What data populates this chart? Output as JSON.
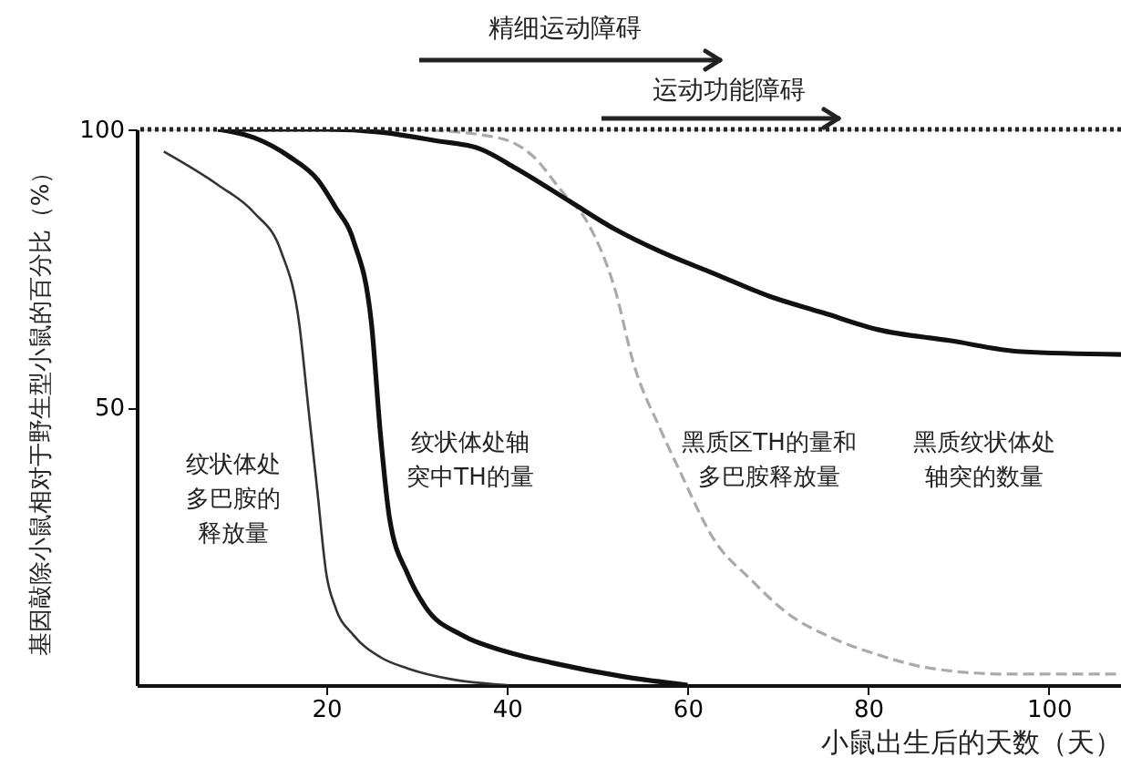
{
  "chart_data": {
    "type": "line",
    "xlabel": "小鼠出生后的天数（天）",
    "ylabel": "基因敲除小鼠相对于野生型小鼠的百分比（%）",
    "xlim": [
      -1,
      108
    ],
    "ylim": [
      0,
      100
    ],
    "xticks": [
      20,
      40,
      60,
      80,
      100
    ],
    "yticks": [
      50,
      100
    ],
    "grid": false,
    "marker": "none",
    "series": [
      {
        "color": "#333333",
        "line_style": "solid",
        "x": [
          2,
          8,
          12,
          15,
          17,
          18,
          19,
          20,
          21,
          23,
          26,
          29,
          34,
          40
        ],
        "values": [
          96,
          90,
          85,
          78,
          65,
          50,
          35,
          20,
          14,
          9,
          5,
          3,
          1,
          0
        ]
      },
      {
        "color": "#111111",
        "line_style": "solid",
        "x": [
          8,
          12,
          16,
          19,
          21,
          23,
          25,
          26,
          27,
          29,
          31,
          35,
          40,
          45,
          53,
          60
        ],
        "values": [
          100,
          98.5,
          95,
          91,
          86,
          80,
          65,
          45,
          30,
          20,
          14,
          9,
          6,
          4,
          1.5,
          0
        ]
      },
      {
        "color": "#aaaaaa",
        "line_style": "dashed",
        "x": [
          30,
          39,
          43,
          46,
          49,
          52,
          54,
          57,
          59,
          63,
          67,
          71,
          76,
          81,
          87,
          95,
          108
        ],
        "values": [
          100,
          98.5,
          95,
          89,
          83,
          71,
          58,
          46,
          39,
          26,
          19,
          13,
          8.5,
          5.5,
          3,
          2,
          2
        ]
      },
      {
        "color": "#111111",
        "line_style": "solid",
        "x": [
          8,
          20,
          26,
          32,
          37,
          41,
          47,
          52,
          57,
          63,
          69,
          75,
          81,
          89,
          97,
          108
        ],
        "values": [
          100,
          100,
          99.5,
          98,
          96.5,
          93,
          87,
          82,
          78,
          74,
          70,
          67,
          64,
          62,
          60,
          59.5
        ]
      }
    ],
    "ref_lines": [
      {
        "axis": "y",
        "value": 100,
        "color": "#222222",
        "line_style": "dotted"
      }
    ],
    "annotations": [
      "精细运动障碍",
      "运动功能障碍",
      "纹状体处多巴胺的释放量",
      "纹状体处轴突中TH的量",
      "黑质区TH的量和多巴胺释放量",
      "黑质纹状体处轴突的数量"
    ]
  }
}
